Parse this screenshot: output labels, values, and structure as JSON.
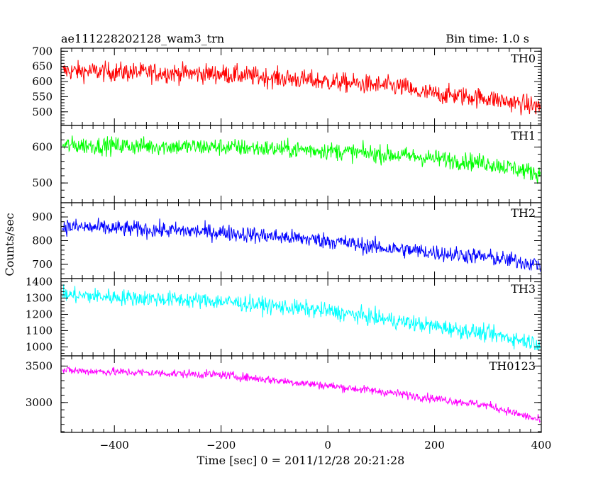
{
  "header": {
    "title": "ae111228202128_wam3_trn",
    "bin_time": "Bin time: 1.0 s"
  },
  "chart_data": {
    "type": "line",
    "title": "ae111228202128_wam3_trn",
    "xlabel": "Time [sec] 0 = 2011/12/28 20:21:28",
    "ylabel": "Counts/sec",
    "xlim": [
      -500,
      400
    ],
    "x_ticks": [
      -400,
      -200,
      0,
      200,
      400
    ],
    "grid": false,
    "panels": [
      {
        "name": "TH0",
        "color": "#ff0000",
        "ylim": [
          455,
          710
        ],
        "y_ticks": [
          500,
          550,
          600,
          650,
          700
        ],
        "trend": [
          [
            -500,
            635
          ],
          [
            -200,
            625
          ],
          [
            0,
            600
          ],
          [
            150,
            580
          ],
          [
            160,
            565
          ],
          [
            300,
            545
          ],
          [
            400,
            515
          ]
        ],
        "noise": 42
      },
      {
        "name": "TH1",
        "color": "#00ff00",
        "ylim": [
          445,
          660
        ],
        "y_ticks": [
          500,
          600
        ],
        "trend": [
          [
            -500,
            605
          ],
          [
            -200,
            600
          ],
          [
            0,
            590
          ],
          [
            150,
            575
          ],
          [
            300,
            555
          ],
          [
            400,
            525
          ]
        ],
        "noise": 32
      },
      {
        "name": "TH2",
        "color": "#0000ff",
        "ylim": [
          640,
          960
        ],
        "y_ticks": [
          700,
          800,
          900
        ],
        "trend": [
          [
            -500,
            860
          ],
          [
            -200,
            835
          ],
          [
            0,
            800
          ],
          [
            100,
            770
          ],
          [
            300,
            730
          ],
          [
            400,
            700
          ]
        ],
        "noise": 45
      },
      {
        "name": "TH3",
        "color": "#00ffff",
        "ylim": [
          945,
          1420
        ],
        "y_ticks": [
          1000,
          1100,
          1200,
          1300,
          1400
        ],
        "trend": [
          [
            -500,
            1320
          ],
          [
            -200,
            1280
          ],
          [
            0,
            1220
          ],
          [
            150,
            1150
          ],
          [
            300,
            1080
          ],
          [
            400,
            1020
          ]
        ],
        "noise": 65
      },
      {
        "name": "TH0123",
        "color": "#ff00ff",
        "ylim": [
          2590,
          3640
        ],
        "y_ticks": [
          3000,
          3500
        ],
        "trend": [
          [
            -500,
            3440
          ],
          [
            -200,
            3380
          ],
          [
            0,
            3230
          ],
          [
            100,
            3150
          ],
          [
            300,
            2960
          ],
          [
            400,
            2750
          ]
        ],
        "noise": 75
      }
    ]
  }
}
